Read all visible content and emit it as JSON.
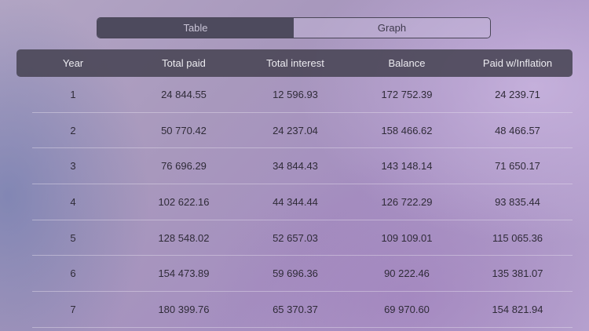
{
  "tabs": [
    {
      "label": "Table",
      "active": true
    },
    {
      "label": "Graph",
      "active": false
    }
  ],
  "table": {
    "headers": [
      "Year",
      "Total paid",
      "Total interest",
      "Balance",
      "Paid w/Inflation"
    ],
    "rows": [
      [
        "1",
        "24 844.55",
        "12 596.93",
        "172 752.39",
        "24 239.71"
      ],
      [
        "2",
        "50 770.42",
        "24 237.04",
        "158 466.62",
        "48 466.57"
      ],
      [
        "3",
        "76 696.29",
        "34 844.43",
        "143 148.14",
        "71 650.17"
      ],
      [
        "4",
        "102 622.16",
        "44 344.44",
        "126 722.29",
        "93 835.44"
      ],
      [
        "5",
        "128 548.02",
        "52 657.03",
        "109 109.01",
        "115 065.36"
      ],
      [
        "6",
        "154 473.89",
        "59 696.36",
        "90 222.46",
        "135 381.07"
      ],
      [
        "7",
        "180 399.76",
        "65 370.37",
        "69 970.60",
        "154 821.94"
      ]
    ]
  },
  "colors": {
    "header_background": "#484454",
    "active_tab": "#4d4a5d"
  }
}
